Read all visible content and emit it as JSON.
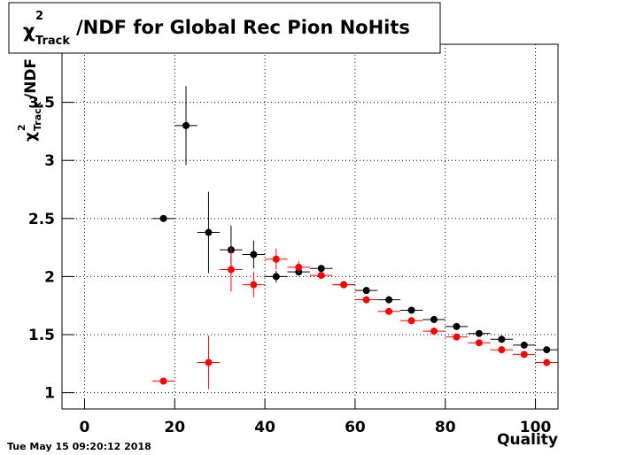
{
  "chart_data": {
    "type": "errorbar",
    "title": {
      "symbol": "χ",
      "sup": "2",
      "sub": "Track",
      "rest": "/NDF for Global Rec Pion NoHits"
    },
    "y_label": {
      "symbol": "χ",
      "sup": "2",
      "sub": "Track",
      "rest": "/NDF"
    },
    "x_label": "Quality",
    "timestamp": "Tue May 15 09:20:12 2018",
    "xlim": [
      -5,
      105
    ],
    "ylim": [
      0.86,
      4.0
    ],
    "xticks": [
      0,
      20,
      40,
      60,
      80,
      100
    ],
    "yticks": [
      1,
      1.5,
      2,
      2.5,
      3,
      3.5
    ],
    "grid": true,
    "series": [
      {
        "color": "#000000",
        "xerr": 2.5,
        "x": [
          17.5,
          22.5,
          27.5,
          32.5,
          37.5,
          42.5,
          47.5,
          52.5,
          57.5,
          62.5,
          67.5,
          72.5,
          77.5,
          82.5,
          87.5,
          92.5,
          97.5,
          102.5
        ],
        "values": [
          2.5,
          3.3,
          2.38,
          2.23,
          2.19,
          2.0,
          2.04,
          2.07,
          1.93,
          1.88,
          1.8,
          1.71,
          1.63,
          1.57,
          1.51,
          1.46,
          1.41,
          1.37
        ],
        "errors": [
          0,
          0.34,
          0.35,
          0.21,
          0.12,
          0.05,
          0.03,
          0,
          0,
          0,
          0,
          0,
          0,
          0,
          0,
          0,
          0,
          0
        ]
      },
      {
        "color": "#ff0000",
        "xerr": 2.5,
        "x": [
          17.5,
          27.5,
          32.5,
          37.5,
          42.5,
          47.5,
          52.5,
          57.5,
          62.5,
          67.5,
          72.5,
          77.5,
          82.5,
          87.5,
          92.5,
          97.5,
          102.5
        ],
        "values": [
          1.1,
          1.26,
          2.06,
          1.93,
          2.15,
          2.08,
          2.01,
          1.93,
          1.8,
          1.7,
          1.62,
          1.53,
          1.48,
          1.43,
          1.37,
          1.33,
          1.26
        ],
        "errors": [
          0,
          0.23,
          0.19,
          0.11,
          0.09,
          0.05,
          0,
          0,
          0,
          0,
          0,
          0,
          0,
          0,
          0,
          0,
          0
        ]
      }
    ]
  }
}
